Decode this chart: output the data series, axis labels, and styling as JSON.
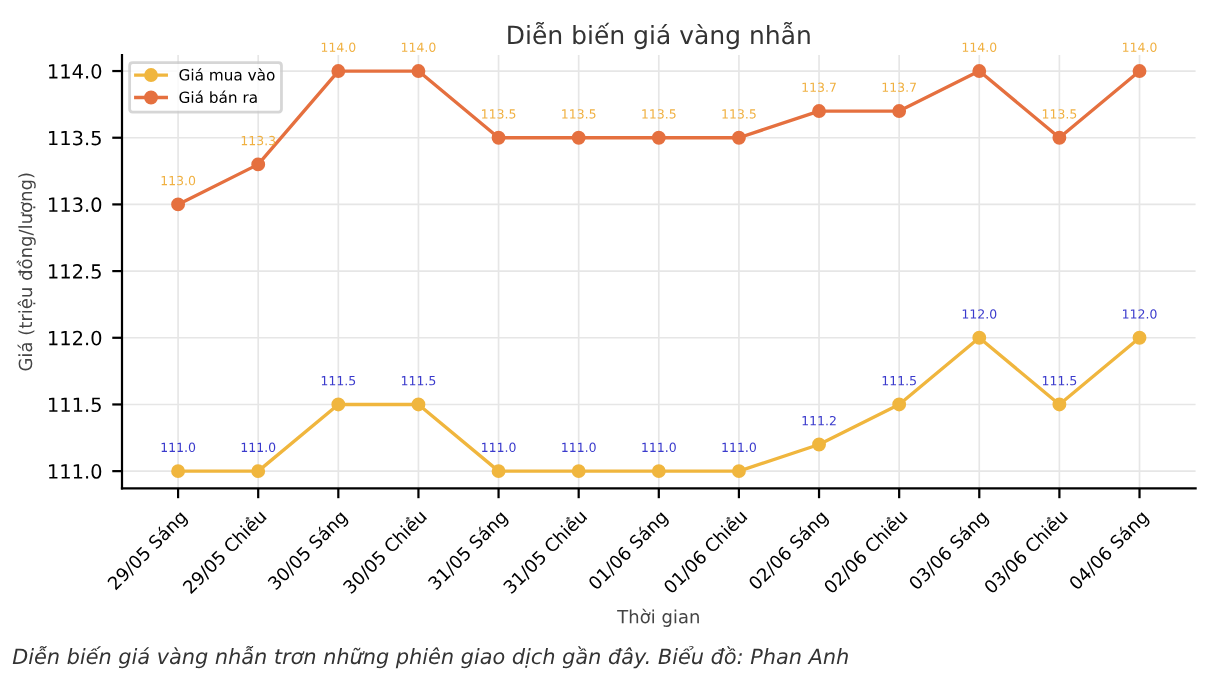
{
  "chart_data": {
    "type": "line",
    "title": "Diễn biến giá vàng nhẫn",
    "xlabel": "Thời gian",
    "ylabel": "Giá (triệu đồng/lượng)",
    "categories": [
      "29/05 Sáng",
      "29/05 Chiều",
      "30/05 Sáng",
      "30/05 Chiều",
      "31/05 Sáng",
      "31/05 Chiều",
      "01/06 Sáng",
      "01/06 Chiều",
      "02/06 Sáng",
      "02/06 Chiều",
      "03/06 Sáng",
      "03/06 Chiều",
      "04/06 Sáng"
    ],
    "series": [
      {
        "name": "Giá mua vào",
        "color": "#f0b63e",
        "values": [
          111.0,
          111.0,
          111.5,
          111.5,
          111.0,
          111.0,
          111.0,
          111.0,
          111.2,
          111.5,
          112.0,
          111.5,
          112.0
        ],
        "value_labels": [
          "111.0",
          "111.0",
          "111.5",
          "111.5",
          "111.0",
          "111.0",
          "111.0",
          "111.0",
          "111.2",
          "111.5",
          "112.0",
          "111.5",
          "112.0"
        ]
      },
      {
        "name": "Giá bán ra",
        "color": "#e5703f",
        "values": [
          113.0,
          113.3,
          114.0,
          114.0,
          113.5,
          113.5,
          113.5,
          113.5,
          113.7,
          113.7,
          114.0,
          113.5,
          114.0
        ],
        "value_labels": [
          "113.0",
          "113.3",
          "114.0",
          "114.0",
          "113.5",
          "113.5",
          "113.5",
          "113.5",
          "113.7",
          "113.7",
          "114.0",
          "113.5",
          "114.0"
        ]
      }
    ],
    "ylim": [
      110.87,
      114.12
    ],
    "yticks": [
      {
        "value": 111,
        "label": "111.0"
      },
      111.5,
      {
        "value": 112,
        "label": "112.0"
      },
      112.5,
      {
        "value": 113,
        "label": "113.0"
      },
      113.5,
      {
        "value": 114,
        "label": "114.0"
      }
    ],
    "grid": true,
    "legend": "top left",
    "marker": "circle",
    "line_style": "solid",
    "annotations": [
      "Diễn biến giá vàng nhẫn trơn những phiên giao dịch gần đây. Biểu đồ: Phan Anh"
    ]
  }
}
